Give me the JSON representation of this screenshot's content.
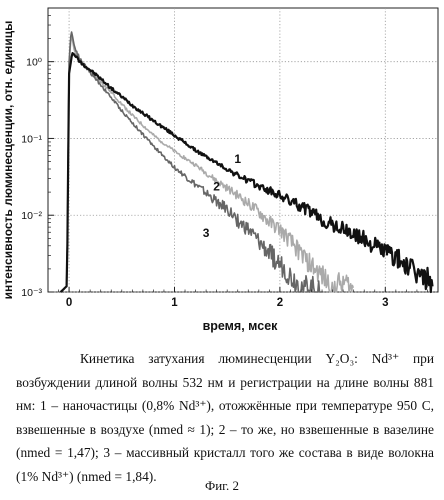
{
  "chart_data": {
    "type": "line",
    "xlabel": "время, мсек",
    "ylabel": "интенсивность люминесценции, отн. единицы",
    "xlim": [
      -0.2,
      3.5
    ],
    "ylim": [
      0.001,
      5
    ],
    "y_scale": "log",
    "x_ticks": [
      "0",
      "1",
      "2",
      "3"
    ],
    "y_ticks": [
      "10⁻³",
      "10⁻²",
      "10⁻¹",
      "10⁰"
    ],
    "grid": true,
    "series": [
      {
        "name": "1",
        "color": "#111111",
        "x": [
          -0.08,
          -0.02,
          0.0,
          0.03,
          0.06,
          0.1,
          0.2,
          0.3,
          0.4,
          0.5,
          0.6,
          0.8,
          1.0,
          1.2,
          1.4,
          1.6,
          1.8,
          2.0,
          2.2,
          2.3,
          2.4,
          2.6,
          2.8,
          2.9,
          3.0,
          3.1,
          3.2,
          3.3,
          3.4,
          3.45
        ],
        "y": [
          0.001,
          0.0012,
          0.7,
          1.3,
          1.2,
          1.0,
          0.78,
          0.6,
          0.45,
          0.35,
          0.27,
          0.17,
          0.11,
          0.07,
          0.048,
          0.033,
          0.024,
          0.018,
          0.013,
          0.011,
          0.0085,
          0.0065,
          0.0048,
          0.004,
          0.0034,
          0.0028,
          0.0022,
          0.0017,
          0.0015,
          0.0012
        ]
      },
      {
        "name": "2",
        "color": "#aaaaaa",
        "x": [
          -0.08,
          -0.02,
          0.0,
          0.02,
          0.05,
          0.1,
          0.2,
          0.3,
          0.4,
          0.5,
          0.6,
          0.8,
          1.0,
          1.2,
          1.4,
          1.6,
          1.8,
          1.9,
          2.0,
          2.1,
          2.2,
          2.3,
          2.4,
          2.5,
          2.6,
          2.7
        ],
        "y": [
          0.001,
          0.0012,
          0.9,
          2.3,
          1.4,
          1.05,
          0.75,
          0.55,
          0.4,
          0.28,
          0.2,
          0.11,
          0.068,
          0.045,
          0.028,
          0.018,
          0.011,
          0.008,
          0.0065,
          0.0045,
          0.0032,
          0.0022,
          0.0016,
          0.0011,
          0.0014,
          0.001
        ]
      },
      {
        "name": "3",
        "color": "#666666",
        "x": [
          -0.08,
          -0.02,
          0.0,
          0.02,
          0.05,
          0.1,
          0.2,
          0.3,
          0.4,
          0.5,
          0.6,
          0.8,
          1.0,
          1.2,
          1.4,
          1.5,
          1.6,
          1.7,
          1.8,
          1.9,
          2.0,
          2.1,
          2.2,
          2.3,
          2.4
        ],
        "y": [
          0.001,
          0.0012,
          1.0,
          2.6,
          1.6,
          1.1,
          0.72,
          0.5,
          0.34,
          0.23,
          0.16,
          0.08,
          0.042,
          0.025,
          0.015,
          0.012,
          0.0085,
          0.0065,
          0.0045,
          0.0032,
          0.0023,
          0.0016,
          0.0012,
          0.0011,
          0.001
        ]
      }
    ],
    "annotations": [
      "1",
      "2",
      "3"
    ]
  },
  "caption": {
    "text": "Кинетика затухания люминесценции Y₂O₃: Nd³⁺ при возбуждении длиной волны 532 нм и регистрации на длине волны 881 нм: 1 – наночастицы (0,8% Nd³⁺), отожжённые при температуре 950 С, взвешенные в воздухе (nmed ≈ 1); 2 – то же, но взвешенные в вазелине (nmed = 1,47); 3 – массивный кристалл того же состава в виде волокна (1% Nd³⁺) (nmed = 1,84).",
    "figure_label": "Фиг. 2"
  }
}
